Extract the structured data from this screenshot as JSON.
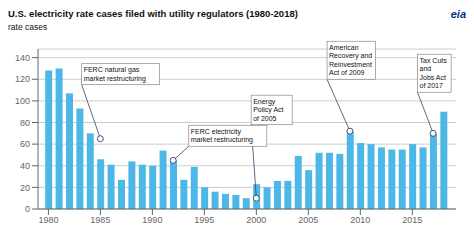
{
  "chart_data": {
    "type": "bar",
    "title": "U.S. electricity rate cases filed with utility regulators (1980-2018)",
    "ylabel": "rate cases",
    "color": "#4db8e8",
    "x": [
      1980,
      1981,
      1982,
      1983,
      1984,
      1985,
      1986,
      1987,
      1988,
      1989,
      1990,
      1991,
      1992,
      1993,
      1994,
      1995,
      1996,
      1997,
      1998,
      1999,
      2000,
      2001,
      2002,
      2003,
      2004,
      2005,
      2006,
      2007,
      2008,
      2009,
      2010,
      2011,
      2012,
      2013,
      2014,
      2015,
      2016,
      2017,
      2018
    ],
    "values": [
      128,
      130,
      107,
      93,
      70,
      46,
      41,
      27,
      44,
      41,
      40,
      54,
      45,
      27,
      39,
      20,
      16,
      14,
      13,
      10,
      23,
      20,
      26,
      26,
      49,
      36,
      52,
      52,
      51,
      72,
      61,
      60,
      57,
      55,
      55,
      60,
      57,
      70,
      90
    ],
    "xlim": [
      1979.0,
      2019.2
    ],
    "ylim": [
      0,
      148
    ],
    "xticks": [
      1980,
      1985,
      1990,
      1995,
      2000,
      2005,
      2010,
      2015
    ],
    "yticks": [
      0,
      20,
      40,
      60,
      80,
      100,
      120,
      140
    ],
    "grid": true,
    "annotations": [
      {
        "text": "FERC natural gas\nmarket restructuring",
        "x": 1985,
        "y": 65,
        "text_x": 1983.2,
        "text_y": 115
      },
      {
        "text": "FERC electricity\nmarket restructuring",
        "x": 1992,
        "y": 45,
        "text_x": 1993.5,
        "text_y": 58
      },
      {
        "text": "Energy\nPolicy Act\nof 2005",
        "x": 2000,
        "y": 10,
        "text_x": 1999.5,
        "text_y": 78
      },
      {
        "text": "American\nRecovery and\nReinvestment\nAct of 2009",
        "x": 2009,
        "y": 72,
        "text_x": 2006.8,
        "text_y": 120
      },
      {
        "text": "Tax Cuts\nand\nJobs Act\nof 2017",
        "x": 2017,
        "y": 70,
        "text_x": 2015.5,
        "text_y": 108
      },
      {
        "text": "eia"
      }
    ]
  }
}
